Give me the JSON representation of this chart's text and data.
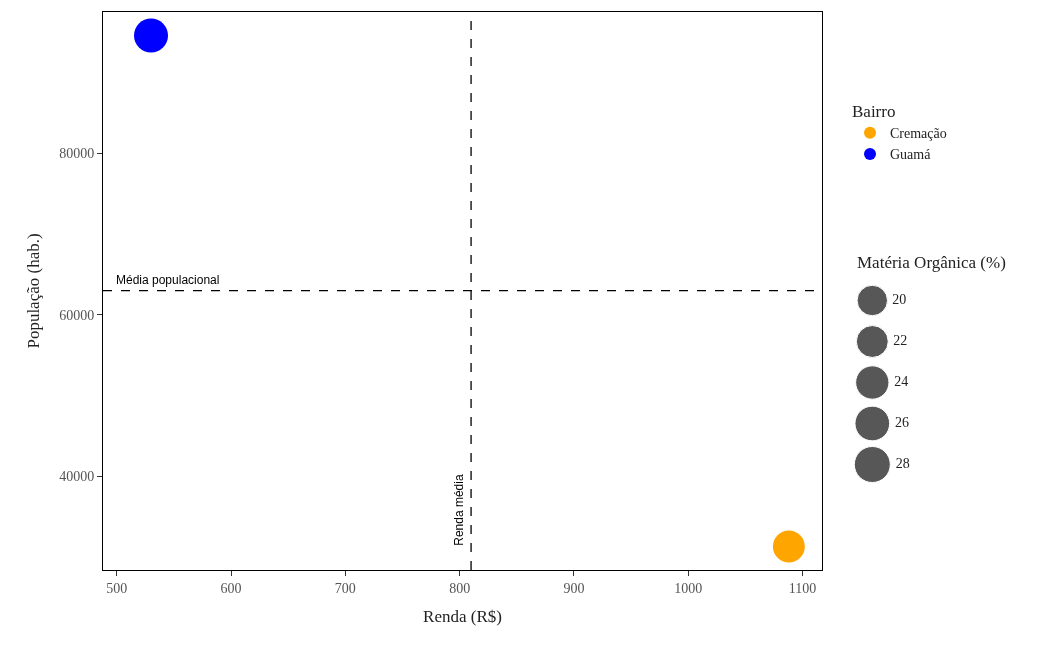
{
  "chart_data": {
    "type": "bubble",
    "xlabel": "Renda (R$)",
    "ylabel": "População (hab.)",
    "legend_title": "Bairro",
    "series": [
      {
        "name": "Cremação",
        "color": "#ffa500",
        "x": [
          1088
        ],
        "values": [
          31300
        ],
        "sizes": [
          22
        ]
      },
      {
        "name": "Guamá",
        "color": "#0000ff",
        "x": [
          530
        ],
        "values": [
          94600
        ],
        "sizes": [
          25
        ]
      }
    ],
    "size_legend": [
      20,
      22,
      24,
      26,
      28
    ],
    "annotations": [
      "Matéria Orgânica (%)"
    ],
    "xlim": [
      488,
      1117
    ],
    "ylim": [
      28400,
      97500
    ],
    "xticks": [
      500,
      600,
      700,
      800,
      900,
      1000,
      1100
    ],
    "yticks": [
      40000,
      60000,
      80000
    ],
    "ref_lines": [
      {
        "axis": "x",
        "value": 810,
        "label": "Renda média",
        "color": "#000000",
        "line_style": "dashed"
      },
      {
        "axis": "y",
        "value": 63000,
        "label": "Média populacional",
        "color": "#000000",
        "line_style": "dashed"
      }
    ],
    "legend": "right"
  }
}
